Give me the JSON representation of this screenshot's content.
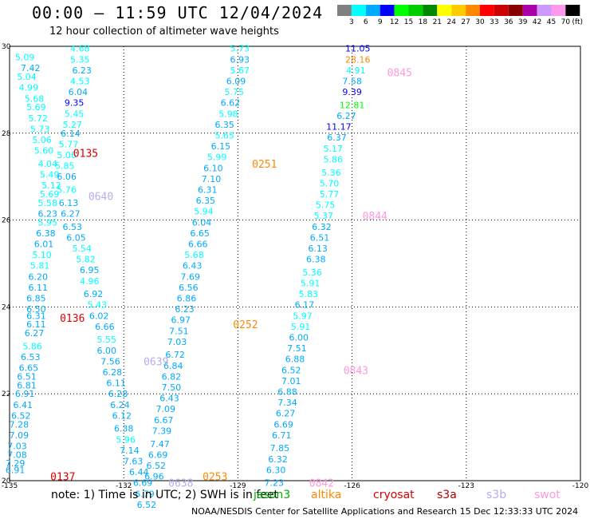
{
  "title": "00:00 — 11:59 UTC 12/04/2024",
  "subtitle": "12 hour collection of altimeter wave heights",
  "note": "note: 1) Time is in UTC; 2) SWH is in feet",
  "credit": "NOAA/NESDIS Center for Satellite Applications and Research   15 Dec 12:33:33 UTC 2024",
  "satellites": [
    {
      "name": "jason3",
      "color": "#00aa00"
    },
    {
      "name": "altika",
      "color": "#ff8800"
    },
    {
      "name": "cryosat",
      "color": "#dd0000"
    },
    {
      "name": "s3a",
      "color": "#aa0000"
    },
    {
      "name": "s3b",
      "color": "#bbaaee"
    },
    {
      "name": "swot",
      "color": "#ff99dd"
    }
  ],
  "chart_data": {
    "type": "scatter",
    "title": "00:00 — 11:59 UTC 12/04/2024",
    "subtitle": "12 hour collection of altimeter wave heights",
    "xlim": [
      -135,
      -120
    ],
    "ylim": [
      20,
      30
    ],
    "x_ticks": [
      "-135",
      "-132",
      "-129",
      "-126",
      "-123",
      "-120"
    ],
    "y_ticks": [
      "20",
      "22",
      "24",
      "26",
      "28",
      "30"
    ],
    "grid": true,
    "colorbar": {
      "unit": "(ft)",
      "ticks": [
        "3",
        "6",
        "9",
        "12",
        "15",
        "18",
        "21",
        "24",
        "27",
        "30",
        "33",
        "36",
        "39",
        "42",
        "45",
        "70"
      ],
      "colors": [
        "#808080",
        "#00ffff",
        "#00aaff",
        "#0000ff",
        "#00ff00",
        "#00cc00",
        "#008800",
        "#ffff00",
        "#ffcc00",
        "#ff8800",
        "#ff0000",
        "#cc0000",
        "#880000",
        "#aa00aa",
        "#cc99ff",
        "#ff99ee",
        "#000000"
      ]
    },
    "passes": [
      {
        "id": "track1",
        "points": [
          {
            "x": -134.6,
            "y": 29.75,
            "v": "5.09"
          },
          {
            "x": -134.45,
            "y": 29.5,
            "v": "7.42"
          },
          {
            "x": -134.55,
            "y": 29.3,
            "v": "5.04"
          },
          {
            "x": -134.5,
            "y": 29.05,
            "v": "4.99"
          },
          {
            "x": -134.35,
            "y": 28.8,
            "v": "5.68"
          },
          {
            "x": -134.3,
            "y": 28.6,
            "v": "5.69"
          },
          {
            "x": -134.25,
            "y": 28.35,
            "v": "5.72"
          },
          {
            "x": -134.2,
            "y": 28.1,
            "v": "5.73"
          },
          {
            "x": -134.15,
            "y": 27.85,
            "v": "5.06"
          },
          {
            "x": -134.1,
            "y": 27.6,
            "v": "5.60"
          },
          {
            "x": -134.0,
            "y": 27.3,
            "v": "4.04"
          },
          {
            "x": -133.95,
            "y": 27.05,
            "v": "5.49"
          },
          {
            "x": -133.9,
            "y": 26.8,
            "v": "5.12"
          },
          {
            "x": -133.95,
            "y": 26.6,
            "v": "5.69"
          },
          {
            "x": -134.0,
            "y": 26.4,
            "v": "5.58"
          },
          {
            "x": -134.0,
            "y": 26.15,
            "v": "6.23"
          },
          {
            "x": -134.0,
            "y": 25.95,
            "v": "5.95"
          },
          {
            "x": -134.05,
            "y": 25.7,
            "v": "6.38"
          },
          {
            "x": -134.1,
            "y": 25.45,
            "v": "6.01"
          },
          {
            "x": -134.15,
            "y": 25.2,
            "v": "5.10"
          },
          {
            "x": -134.2,
            "y": 24.95,
            "v": "5.81"
          },
          {
            "x": -134.25,
            "y": 24.7,
            "v": "6.20"
          },
          {
            "x": -134.25,
            "y": 24.45,
            "v": "6.11"
          },
          {
            "x": -134.3,
            "y": 24.2,
            "v": "6.85"
          },
          {
            "x": -134.3,
            "y": 23.95,
            "v": "6.50"
          },
          {
            "x": -134.3,
            "y": 23.8,
            "v": "6.31"
          },
          {
            "x": -134.3,
            "y": 23.6,
            "v": "6.11"
          },
          {
            "x": -134.35,
            "y": 23.4,
            "v": "6.27"
          },
          {
            "x": -134.4,
            "y": 23.1,
            "v": "5.86"
          },
          {
            "x": -134.45,
            "y": 22.85,
            "v": "6.53"
          },
          {
            "x": -134.5,
            "y": 22.6,
            "v": "6.65"
          },
          {
            "x": -134.55,
            "y": 22.4,
            "v": "6.51"
          },
          {
            "x": -134.55,
            "y": 22.2,
            "v": "6.81"
          },
          {
            "x": -134.6,
            "y": 22.0,
            "v": "6.91"
          },
          {
            "x": -134.65,
            "y": 21.75,
            "v": "6.41"
          },
          {
            "x": -134.7,
            "y": 21.5,
            "v": "6.52"
          },
          {
            "x": -134.75,
            "y": 21.3,
            "v": "7.28"
          },
          {
            "x": -134.75,
            "y": 21.05,
            "v": "7.09"
          },
          {
            "x": -134.8,
            "y": 20.8,
            "v": "7.03"
          },
          {
            "x": -134.8,
            "y": 20.6,
            "v": "7.08"
          },
          {
            "x": -134.85,
            "y": 20.4,
            "v": "7.29"
          },
          {
            "x": -134.85,
            "y": 20.25,
            "v": "6.91"
          }
        ]
      },
      {
        "id": "track2",
        "points": [
          {
            "x": -133.15,
            "y": 29.95,
            "v": "4.68"
          },
          {
            "x": -133.15,
            "y": 29.7,
            "v": "5.35"
          },
          {
            "x": -133.1,
            "y": 29.45,
            "v": "6.23"
          },
          {
            "x": -133.15,
            "y": 29.2,
            "v": "4.53"
          },
          {
            "x": -133.2,
            "y": 28.95,
            "v": "6.04"
          },
          {
            "x": -133.3,
            "y": 28.7,
            "v": "9.35"
          },
          {
            "x": -133.3,
            "y": 28.45,
            "v": "5.45"
          },
          {
            "x": -133.35,
            "y": 28.2,
            "v": "5.27"
          },
          {
            "x": -133.4,
            "y": 28.0,
            "v": "6.14"
          },
          {
            "x": -133.45,
            "y": 27.75,
            "v": "5.77"
          },
          {
            "x": -133.5,
            "y": 27.5,
            "v": "5.06"
          },
          {
            "x": -133.55,
            "y": 27.25,
            "v": "5.85"
          },
          {
            "x": -133.5,
            "y": 27.0,
            "v": "6.06"
          },
          {
            "x": -133.5,
            "y": 26.7,
            "v": "5.76"
          },
          {
            "x": -133.45,
            "y": 26.4,
            "v": "6.13"
          },
          {
            "x": -133.4,
            "y": 26.15,
            "v": "6.27"
          },
          {
            "x": -133.35,
            "y": 25.85,
            "v": "6.53"
          },
          {
            "x": -133.25,
            "y": 25.6,
            "v": "6.05"
          },
          {
            "x": -133.1,
            "y": 25.35,
            "v": "5.54"
          },
          {
            "x": -133.0,
            "y": 25.1,
            "v": "5.82"
          },
          {
            "x": -132.9,
            "y": 24.85,
            "v": "6.95"
          },
          {
            "x": -132.9,
            "y": 24.6,
            "v": "4.96"
          },
          {
            "x": -132.8,
            "y": 24.3,
            "v": "6.92"
          },
          {
            "x": -132.7,
            "y": 24.05,
            "v": "5.43"
          },
          {
            "x": -132.65,
            "y": 23.8,
            "v": "6.02"
          },
          {
            "x": -132.5,
            "y": 23.55,
            "v": "6.66"
          },
          {
            "x": -132.45,
            "y": 23.25,
            "v": "5.55"
          },
          {
            "x": -132.45,
            "y": 23.0,
            "v": "6.00"
          },
          {
            "x": -132.35,
            "y": 22.75,
            "v": "7.56"
          },
          {
            "x": -132.3,
            "y": 22.5,
            "v": "6.28"
          },
          {
            "x": -132.2,
            "y": 22.25,
            "v": "6.11"
          },
          {
            "x": -132.15,
            "y": 22.0,
            "v": "6.28"
          },
          {
            "x": -132.1,
            "y": 21.75,
            "v": "6.24"
          },
          {
            "x": -132.05,
            "y": 21.5,
            "v": "6.12"
          },
          {
            "x": -132.0,
            "y": 21.2,
            "v": "6.38"
          },
          {
            "x": -131.95,
            "y": 20.95,
            "v": "5.96"
          },
          {
            "x": -131.85,
            "y": 20.7,
            "v": "7.14"
          },
          {
            "x": -131.75,
            "y": 20.45,
            "v": "7.63"
          },
          {
            "x": -131.6,
            "y": 20.2,
            "v": "6.44"
          },
          {
            "x": -131.5,
            "y": 19.95,
            "v": "6.69"
          },
          {
            "x": -131.45,
            "y": 19.7,
            "v": "6.79"
          },
          {
            "x": -131.4,
            "y": 19.45,
            "v": "6.52"
          }
        ]
      },
      {
        "id": "track3",
        "points": [
          {
            "x": -128.95,
            "y": 29.95,
            "v": "5.73"
          },
          {
            "x": -128.95,
            "y": 29.7,
            "v": "6.93"
          },
          {
            "x": -128.95,
            "y": 29.45,
            "v": "5.67"
          },
          {
            "x": -129.05,
            "y": 29.2,
            "v": "6.09"
          },
          {
            "x": -129.1,
            "y": 28.95,
            "v": "5.75"
          },
          {
            "x": -129.2,
            "y": 28.7,
            "v": "6.62"
          },
          {
            "x": -129.25,
            "y": 28.45,
            "v": "5.98"
          },
          {
            "x": -129.35,
            "y": 28.2,
            "v": "6.35"
          },
          {
            "x": -129.35,
            "y": 27.95,
            "v": "5.65"
          },
          {
            "x": -129.45,
            "y": 27.7,
            "v": "6.15"
          },
          {
            "x": -129.55,
            "y": 27.45,
            "v": "5.99"
          },
          {
            "x": -129.65,
            "y": 27.2,
            "v": "6.10"
          },
          {
            "x": -129.7,
            "y": 26.95,
            "v": "7.10"
          },
          {
            "x": -129.8,
            "y": 26.7,
            "v": "6.31"
          },
          {
            "x": -129.85,
            "y": 26.45,
            "v": "6.35"
          },
          {
            "x": -129.9,
            "y": 26.2,
            "v": "5.94"
          },
          {
            "x": -129.95,
            "y": 25.95,
            "v": "6.04"
          },
          {
            "x": -130.0,
            "y": 25.7,
            "v": "6.65"
          },
          {
            "x": -130.05,
            "y": 25.45,
            "v": "6.66"
          },
          {
            "x": -130.15,
            "y": 25.2,
            "v": "5.68"
          },
          {
            "x": -130.2,
            "y": 24.95,
            "v": "6.43"
          },
          {
            "x": -130.25,
            "y": 24.7,
            "v": "7.69"
          },
          {
            "x": -130.3,
            "y": 24.45,
            "v": "6.56"
          },
          {
            "x": -130.35,
            "y": 24.2,
            "v": "6.86"
          },
          {
            "x": -130.4,
            "y": 23.95,
            "v": "6.23"
          },
          {
            "x": -130.5,
            "y": 23.7,
            "v": "6.97"
          },
          {
            "x": -130.55,
            "y": 23.45,
            "v": "7.51"
          },
          {
            "x": -130.6,
            "y": 23.2,
            "v": "7.03"
          },
          {
            "x": -130.65,
            "y": 22.9,
            "v": "6.72"
          },
          {
            "x": -130.7,
            "y": 22.65,
            "v": "6.84"
          },
          {
            "x": -130.75,
            "y": 22.4,
            "v": "6.82"
          },
          {
            "x": -130.75,
            "y": 22.15,
            "v": "7.50"
          },
          {
            "x": -130.8,
            "y": 21.9,
            "v": "6.43"
          },
          {
            "x": -130.9,
            "y": 21.65,
            "v": "7.09"
          },
          {
            "x": -130.95,
            "y": 21.4,
            "v": "6.67"
          },
          {
            "x": -131.0,
            "y": 21.15,
            "v": "7.39"
          },
          {
            "x": -131.05,
            "y": 20.85,
            "v": "7.47"
          },
          {
            "x": -131.1,
            "y": 20.6,
            "v": "6.69"
          },
          {
            "x": -131.15,
            "y": 20.35,
            "v": "6.52"
          },
          {
            "x": -131.2,
            "y": 20.1,
            "v": "6.96"
          }
        ]
      },
      {
        "id": "track4",
        "points": [
          {
            "x": -125.85,
            "y": 29.95,
            "v": "11.05"
          },
          {
            "x": -125.85,
            "y": 29.7,
            "v": "28.16"
          },
          {
            "x": -125.9,
            "y": 29.45,
            "v": "4.91"
          },
          {
            "x": -126.0,
            "y": 29.2,
            "v": "7.58"
          },
          {
            "x": -126.0,
            "y": 28.95,
            "v": "9.39"
          },
          {
            "x": -126.0,
            "y": 28.65,
            "v": "12.81"
          },
          {
            "x": -126.15,
            "y": 28.4,
            "v": "6.27"
          },
          {
            "x": -126.35,
            "y": 28.15,
            "v": "11.17"
          },
          {
            "x": -126.4,
            "y": 27.9,
            "v": "6.37"
          },
          {
            "x": -126.5,
            "y": 27.65,
            "v": "5.17"
          },
          {
            "x": -126.5,
            "y": 27.4,
            "v": "5.86"
          },
          {
            "x": -126.55,
            "y": 27.1,
            "v": "5.36"
          },
          {
            "x": -126.6,
            "y": 26.85,
            "v": "5.70"
          },
          {
            "x": -126.6,
            "y": 26.6,
            "v": "5.77"
          },
          {
            "x": -126.7,
            "y": 26.35,
            "v": "5.75"
          },
          {
            "x": -126.75,
            "y": 26.1,
            "v": "5.37"
          },
          {
            "x": -126.8,
            "y": 25.85,
            "v": "6.32"
          },
          {
            "x": -126.85,
            "y": 25.6,
            "v": "6.51"
          },
          {
            "x": -126.9,
            "y": 25.35,
            "v": "6.13"
          },
          {
            "x": -126.95,
            "y": 25.1,
            "v": "6.38"
          },
          {
            "x": -127.05,
            "y": 24.8,
            "v": "5.36"
          },
          {
            "x": -127.1,
            "y": 24.55,
            "v": "5.91"
          },
          {
            "x": -127.15,
            "y": 24.3,
            "v": "5.83"
          },
          {
            "x": -127.25,
            "y": 24.05,
            "v": "6.17"
          },
          {
            "x": -127.3,
            "y": 23.8,
            "v": "5.97"
          },
          {
            "x": -127.35,
            "y": 23.55,
            "v": "5.91"
          },
          {
            "x": -127.4,
            "y": 23.3,
            "v": "6.00"
          },
          {
            "x": -127.45,
            "y": 23.05,
            "v": "7.51"
          },
          {
            "x": -127.5,
            "y": 22.8,
            "v": "6.88"
          },
          {
            "x": -127.6,
            "y": 22.55,
            "v": "6.52"
          },
          {
            "x": -127.6,
            "y": 22.3,
            "v": "7.01"
          },
          {
            "x": -127.7,
            "y": 22.05,
            "v": "6.88"
          },
          {
            "x": -127.7,
            "y": 21.8,
            "v": "7.34"
          },
          {
            "x": -127.75,
            "y": 21.55,
            "v": "6.27"
          },
          {
            "x": -127.8,
            "y": 21.3,
            "v": "6.69"
          },
          {
            "x": -127.85,
            "y": 21.05,
            "v": "6.71"
          },
          {
            "x": -127.9,
            "y": 20.75,
            "v": "7.85"
          },
          {
            "x": -127.95,
            "y": 20.5,
            "v": "6.32"
          },
          {
            "x": -128.0,
            "y": 20.25,
            "v": "6.30"
          },
          {
            "x": -128.05,
            "y": 19.95,
            "v": "7.23"
          }
        ]
      }
    ],
    "time_labels": [
      {
        "text": "0135",
        "x": -133.0,
        "y": 27.55,
        "sat": "cryosat"
      },
      {
        "text": "0640",
        "x": -132.6,
        "y": 26.55,
        "sat": "s3b"
      },
      {
        "text": "0136",
        "x": -133.35,
        "y": 23.75,
        "sat": "cryosat"
      },
      {
        "text": "0639",
        "x": -131.15,
        "y": 22.75,
        "sat": "s3b"
      },
      {
        "text": "0137",
        "x": -133.6,
        "y": 20.1,
        "sat": "cryosat"
      },
      {
        "text": "0638",
        "x": -130.5,
        "y": 19.95,
        "sat": "s3b"
      },
      {
        "text": "0253",
        "x": -129.6,
        "y": 20.1,
        "sat": "altika"
      },
      {
        "text": "0252",
        "x": -128.8,
        "y": 23.6,
        "sat": "altika"
      },
      {
        "text": "0251",
        "x": -128.3,
        "y": 27.3,
        "sat": "altika"
      },
      {
        "text": "0845",
        "x": -124.75,
        "y": 29.4,
        "sat": "swot"
      },
      {
        "text": "0844",
        "x": -125.4,
        "y": 26.1,
        "sat": "swot"
      },
      {
        "text": "0843",
        "x": -125.9,
        "y": 22.55,
        "sat": "swot"
      },
      {
        "text": "0842",
        "x": -126.8,
        "y": 19.95,
        "sat": "swot"
      }
    ]
  }
}
